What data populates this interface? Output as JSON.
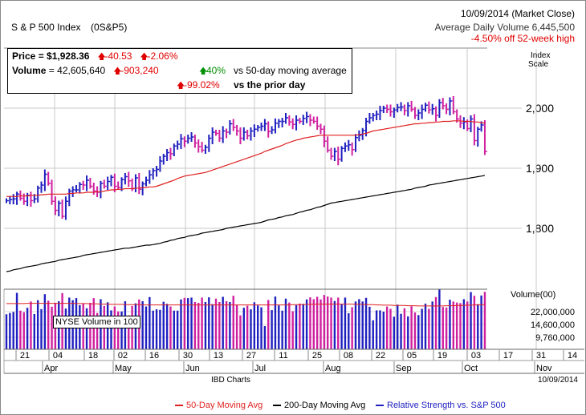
{
  "header": {
    "index_name": "S & P 500 Index",
    "symbol": "(0S&P5)",
    "date_status": "10/09/2014 (Market Close)",
    "avg_volume": "Average Daily Volume 6,445,500",
    "off_high": "-4.50% off 52-week high"
  },
  "info_box": {
    "price_label": "Price",
    "price_value": "= $1,928.36",
    "price_change": "-40.53",
    "price_change_pct": "-2.06%",
    "volume_label": "Volume",
    "volume_value": "= 42,605,640",
    "volume_change": "-903,240",
    "vs50_pct": "40%",
    "vs50_label": "vs 50-day moving average",
    "vsprior_pct": "-99.02%",
    "vsprior_label": "vs the prior day"
  },
  "scale": {
    "line1": "Index",
    "line2": "Scale",
    "volume_label": "Volume(00)"
  },
  "nyse_label": "NYSE Volume in 100",
  "footer": {
    "source": "IBD Charts",
    "date": "10/09/2014"
  },
  "legend": {
    "ma50": "50-Day Moving Avg",
    "ma200": "200-Day Moving Avg",
    "rs": "Relative Strength vs. S&P 500"
  },
  "colors": {
    "up": "#2020c0",
    "down": "#d020a0",
    "ma50": "#e02020",
    "ma200": "#000000",
    "rs": "#2020c0",
    "grid": "#c8c8c8",
    "loss": "#e00000",
    "gain": "#009000"
  },
  "chart_data": {
    "type": "ohlc",
    "price_axis": {
      "ticks": [
        1800,
        1900,
        2000
      ],
      "tick_labels": [
        "1,800",
        "1,900",
        "2,000"
      ],
      "range": [
        1710,
        2040
      ]
    },
    "volume_axis": {
      "tick_labels": [
        "22,000,000",
        "14,600,000",
        "9,760,000"
      ]
    },
    "x_day_labels": [
      "21",
      "04",
      "18",
      "02",
      "16",
      "30",
      "13",
      "27",
      "11",
      "25",
      "08",
      "22",
      "05",
      "19",
      "03",
      "17",
      "31",
      "14"
    ],
    "x_month_labels": [
      "Apr",
      "May",
      "Jun",
      "Jul",
      "Aug",
      "Sep",
      "Oct",
      "Nov"
    ],
    "close": [
      1846,
      1848,
      1849,
      1857,
      1850,
      1845,
      1855,
      1846,
      1849,
      1867,
      1872,
      1890,
      1875,
      1845,
      1830,
      1842,
      1820,
      1845,
      1862,
      1864,
      1864,
      1873,
      1872,
      1880,
      1870,
      1862,
      1860,
      1875,
      1870,
      1878,
      1885,
      1870,
      1868,
      1881,
      1886,
      1879,
      1866,
      1884,
      1865,
      1874,
      1880,
      1889,
      1896,
      1898,
      1912,
      1920,
      1926,
      1924,
      1937,
      1940,
      1949,
      1945,
      1950,
      1952,
      1942,
      1936,
      1930,
      1935,
      1950,
      1960,
      1958,
      1950,
      1962,
      1960,
      1974,
      1968,
      1962,
      1950,
      1960,
      1954,
      1962,
      1965,
      1968,
      1970,
      1974,
      1961,
      1964,
      1975,
      1978,
      1978,
      1984,
      1977,
      1973,
      1980,
      1978,
      1983,
      1986,
      1980,
      1978,
      1970,
      1965,
      1945,
      1930,
      1920,
      1928,
      1915,
      1933,
      1937,
      1939,
      1931,
      1951,
      1955,
      1963,
      1978,
      1984,
      1988,
      1990,
      1996,
      2000,
      1998,
      1994,
      1997,
      2001,
      2002,
      1996,
      2004,
      1998,
      1988,
      1992,
      1998,
      2005,
      1997,
      1999,
      1988,
      2009,
      2004,
      1998,
      2012,
      1994,
      1982,
      1975,
      1977,
      1966,
      1982,
      1946,
      1965,
      1972,
      1928
    ],
    "ma50": [
      1853,
      1853,
      1853,
      1853,
      1854,
      1854,
      1854,
      1855,
      1855,
      1855,
      1856,
      1856,
      1857,
      1857,
      1857,
      1857,
      1857,
      1857,
      1858,
      1858,
      1859,
      1859,
      1859,
      1860,
      1860,
      1860,
      1861,
      1861,
      1862,
      1863,
      1864,
      1864,
      1865,
      1865,
      1866,
      1866,
      1866,
      1867,
      1867,
      1868,
      1868,
      1869,
      1869,
      1870,
      1872,
      1874,
      1876,
      1878,
      1880,
      1883,
      1885,
      1887,
      1888,
      1889,
      1890,
      1891,
      1892,
      1893,
      1895,
      1897,
      1899,
      1901,
      1903,
      1905,
      1907,
      1909,
      1911,
      1913,
      1915,
      1917,
      1919,
      1921,
      1923,
      1925,
      1928,
      1930,
      1932,
      1934,
      1936,
      1938,
      1941,
      1943,
      1945,
      1947,
      1948,
      1950,
      1951,
      1952,
      1953,
      1954,
      1955,
      1955,
      1955,
      1955,
      1955,
      1955,
      1955,
      1955,
      1955,
      1955,
      1955,
      1956,
      1957,
      1958,
      1960,
      1962,
      1963,
      1964,
      1965,
      1966,
      1967,
      1968,
      1969,
      1970,
      1971,
      1972,
      1973,
      1974,
      1974,
      1975,
      1975,
      1976,
      1976,
      1977,
      1977,
      1978,
      1978,
      1978,
      1979,
      1979,
      1979,
      1978,
      1978,
      1978,
      1977,
      1977,
      1976,
      1975
    ],
    "ma200": [
      1728,
      1729,
      1731,
      1732,
      1733,
      1735,
      1736,
      1737,
      1738,
      1739,
      1741,
      1742,
      1743,
      1744,
      1745,
      1747,
      1748,
      1749,
      1750,
      1751,
      1752,
      1753,
      1755,
      1756,
      1757,
      1758,
      1759,
      1760,
      1761,
      1762,
      1763,
      1764,
      1765,
      1766,
      1767,
      1767,
      1768,
      1769,
      1770,
      1771,
      1772,
      1772,
      1773,
      1774,
      1775,
      1777,
      1778,
      1780,
      1781,
      1783,
      1784,
      1785,
      1787,
      1788,
      1789,
      1790,
      1792,
      1793,
      1794,
      1795,
      1796,
      1797,
      1798,
      1800,
      1801,
      1802,
      1803,
      1804,
      1805,
      1806,
      1807,
      1808,
      1809,
      1810,
      1812,
      1814,
      1815,
      1816,
      1818,
      1819,
      1821,
      1822,
      1823,
      1825,
      1827,
      1828,
      1830,
      1831,
      1833,
      1835,
      1836,
      1838,
      1840,
      1842,
      1843,
      1844,
      1845,
      1846,
      1847,
      1848,
      1849,
      1850,
      1851,
      1852,
      1853,
      1854,
      1855,
      1856,
      1857,
      1858,
      1859,
      1860,
      1861,
      1862,
      1863,
      1864,
      1865,
      1867,
      1868,
      1869,
      1870,
      1872,
      1873,
      1874,
      1875,
      1876,
      1877,
      1878,
      1879,
      1880,
      1881,
      1882,
      1883,
      1884,
      1885,
      1886,
      1887,
      1888
    ],
    "volume": [
      13.4,
      13.9,
      14.3,
      21.6,
      14.8,
      14.2,
      15.9,
      18.3,
      13.5,
      18.8,
      15.4,
      21.1,
      18.6,
      16.3,
      17.8,
      18.4,
      21.5,
      15.6,
      19.8,
      18.8,
      19.6,
      16.9,
      17.6,
      15.7,
      17.8,
      19.6,
      13.9,
      19.2,
      16.6,
      18.0,
      14.9,
      16.4,
      14.5,
      14.5,
      18.4,
      13.0,
      16.6,
      17.6,
      19.1,
      18.4,
      16.4,
      20.0,
      14.8,
      15.3,
      15.1,
      18.2,
      17.4,
      16.4,
      14.8,
      14.8,
      19.1,
      19.7,
      19.6,
      19.8,
      18.1,
      17.8,
      19.8,
      18.1,
      19.9,
      17.3,
      19.4,
      18.1,
      20.1,
      18.4,
      18.1,
      20.5,
      16.9,
      13.0,
      15.9,
      16.7,
      15.3,
      18.0,
      16.8,
      16.1,
      8.9,
      18.9,
      15.0,
      20.2,
      16.8,
      14.8,
      19.4,
      17.9,
      14.6,
      16.9,
      17.5,
      17.4,
      19.1,
      19.9,
      19.2,
      20.1,
      19.1,
      20.8,
      20.2,
      19.8,
      18.5,
      19.8,
      17.2,
      19.8,
      13.8,
      16.1,
      18.3,
      19.2,
      18.3,
      19.7,
      16.3,
      11.1,
      14.9,
      14.9,
      14.4,
      16.4,
      15.5,
      12.5,
      17.1,
      13.6,
      15.7,
      12.6,
      16.5,
      14.1,
      13.1,
      15.5,
      17.5,
      15.5,
      18.3,
      20.0,
      23.0,
      16.2,
      16.0,
      19.0,
      18.3,
      17.9,
      17.7,
      19.2,
      18.3,
      21.9,
      20.5,
      17.3,
      20.6,
      22.0
    ],
    "vol_ma50": [
      17.5,
      17.5,
      17.5,
      17.5,
      17.5,
      17.5,
      17.6,
      17.6,
      17.6,
      17.6,
      17.6,
      17.6,
      17.6,
      17.6,
      17.6,
      17.6,
      17.6,
      17.6,
      17.6,
      17.6,
      17.5,
      17.5,
      17.5,
      17.5,
      17.4,
      17.4,
      17.4,
      17.3,
      17.3,
      17.3,
      17.2,
      17.2,
      17.2,
      17.2,
      17.1,
      17.1,
      17.1,
      17.1,
      17.1,
      17.0,
      17.0,
      17.0,
      17.0,
      17.0,
      17.0,
      17.0,
      17.0,
      17.0,
      17.0,
      17.0,
      17.0,
      17.0,
      17.0,
      17.0,
      17.0,
      17.0,
      17.0,
      17.0,
      17.0,
      17.0,
      17.0,
      17.0,
      17.0,
      17.0,
      17.0,
      17.0,
      17.0,
      17.0,
      17.0,
      17.0,
      17.0,
      17.0,
      17.0,
      17.0,
      17.0,
      17.0,
      17.0,
      17.0,
      17.0,
      17.0,
      17.0,
      17.0,
      17.1,
      17.1,
      17.1,
      17.1,
      17.2,
      17.2,
      17.2,
      17.3,
      17.3,
      17.3,
      17.3,
      17.3,
      17.3,
      17.3,
      17.3,
      17.3,
      17.3,
      17.3,
      17.2,
      17.2,
      17.2,
      17.1,
      17.1,
      17.1,
      17.0,
      17.0,
      16.9,
      16.9,
      16.9,
      16.8,
      16.8,
      16.8,
      16.8,
      16.7,
      16.7,
      16.7,
      16.6,
      16.6,
      16.6,
      16.6,
      16.6,
      16.6,
      16.6,
      16.6,
      16.7,
      16.7,
      16.7,
      16.8,
      16.8,
      16.8,
      16.9,
      16.9,
      17.0,
      17.0,
      17.1,
      17.1
    ]
  }
}
